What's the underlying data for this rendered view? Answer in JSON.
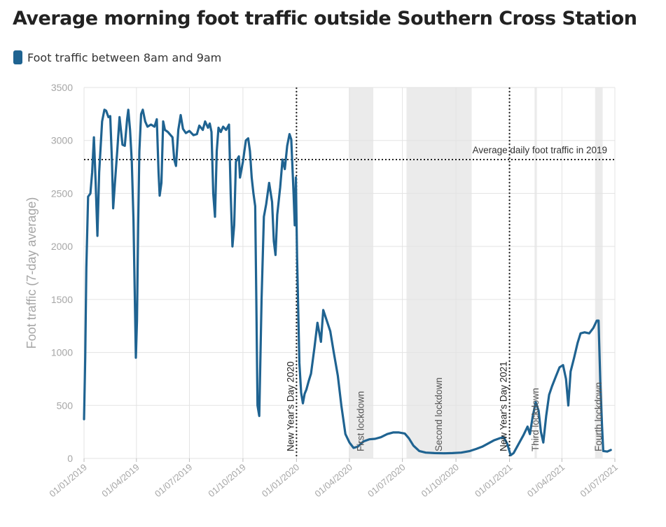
{
  "chart_data": {
    "type": "line",
    "title": "Average morning foot traffic outside Southern Cross Station",
    "legend_position": "top-left",
    "series": [
      {
        "name": "Foot traffic between 8am and 9am",
        "color": "#1f6391",
        "points": [
          [
            "2019-01-01",
            370
          ],
          [
            "2019-01-03",
            950
          ],
          [
            "2019-01-05",
            1800
          ],
          [
            "2019-01-08",
            2470
          ],
          [
            "2019-01-12",
            2500
          ],
          [
            "2019-01-15",
            2700
          ],
          [
            "2019-01-18",
            3030
          ],
          [
            "2019-01-21",
            2600
          ],
          [
            "2019-01-24",
            2100
          ],
          [
            "2019-01-27",
            2700
          ],
          [
            "2019-02-01",
            3180
          ],
          [
            "2019-02-05",
            3290
          ],
          [
            "2019-02-08",
            3280
          ],
          [
            "2019-02-12",
            3220
          ],
          [
            "2019-02-15",
            3230
          ],
          [
            "2019-02-18",
            2800
          ],
          [
            "2019-02-20",
            2360
          ],
          [
            "2019-02-23",
            2600
          ],
          [
            "2019-02-27",
            2900
          ],
          [
            "2019-03-03",
            3220
          ],
          [
            "2019-03-08",
            2960
          ],
          [
            "2019-03-12",
            2950
          ],
          [
            "2019-03-16",
            3200
          ],
          [
            "2019-03-18",
            3290
          ],
          [
            "2019-03-21",
            3100
          ],
          [
            "2019-03-24",
            2800
          ],
          [
            "2019-03-27",
            2250
          ],
          [
            "2019-03-29",
            1600
          ],
          [
            "2019-03-31",
            950
          ],
          [
            "2019-04-02",
            1300
          ],
          [
            "2019-04-04",
            2200
          ],
          [
            "2019-04-06",
            2900
          ],
          [
            "2019-04-09",
            3250
          ],
          [
            "2019-04-12",
            3290
          ],
          [
            "2019-04-16",
            3180
          ],
          [
            "2019-04-20",
            3130
          ],
          [
            "2019-04-26",
            3150
          ],
          [
            "2019-05-02",
            3130
          ],
          [
            "2019-05-06",
            3200
          ],
          [
            "2019-05-09",
            2700
          ],
          [
            "2019-05-11",
            2480
          ],
          [
            "2019-05-14",
            2600
          ],
          [
            "2019-05-17",
            3180
          ],
          [
            "2019-05-20",
            3100
          ],
          [
            "2019-05-25",
            3080
          ],
          [
            "2019-06-02",
            3030
          ],
          [
            "2019-06-05",
            2820
          ],
          [
            "2019-06-08",
            2760
          ],
          [
            "2019-06-12",
            3100
          ],
          [
            "2019-06-16",
            3240
          ],
          [
            "2019-06-20",
            3110
          ],
          [
            "2019-06-25",
            3070
          ],
          [
            "2019-07-01",
            3090
          ],
          [
            "2019-07-08",
            3050
          ],
          [
            "2019-07-14",
            3060
          ],
          [
            "2019-07-18",
            3140
          ],
          [
            "2019-07-24",
            3100
          ],
          [
            "2019-07-28",
            3180
          ],
          [
            "2019-08-02",
            3120
          ],
          [
            "2019-08-05",
            3160
          ],
          [
            "2019-08-08",
            3080
          ],
          [
            "2019-08-11",
            2500
          ],
          [
            "2019-08-14",
            2280
          ],
          [
            "2019-08-17",
            2900
          ],
          [
            "2019-08-20",
            3120
          ],
          [
            "2019-08-24",
            3080
          ],
          [
            "2019-08-28",
            3130
          ],
          [
            "2019-09-02",
            3100
          ],
          [
            "2019-09-07",
            3150
          ],
          [
            "2019-09-10",
            2500
          ],
          [
            "2019-09-13",
            2000
          ],
          [
            "2019-09-16",
            2200
          ],
          [
            "2019-09-19",
            2800
          ],
          [
            "2019-09-24",
            2850
          ],
          [
            "2019-09-26",
            2650
          ],
          [
            "2019-10-01",
            2800
          ],
          [
            "2019-10-06",
            3000
          ],
          [
            "2019-10-10",
            3020
          ],
          [
            "2019-10-13",
            2900
          ],
          [
            "2019-10-16",
            2650
          ],
          [
            "2019-10-19",
            2500
          ],
          [
            "2019-10-22",
            2380
          ],
          [
            "2019-10-24",
            1500
          ],
          [
            "2019-10-26",
            500
          ],
          [
            "2019-10-29",
            400
          ],
          [
            "2019-11-02",
            1500
          ],
          [
            "2019-11-06",
            2280
          ],
          [
            "2019-11-10",
            2400
          ],
          [
            "2019-11-15",
            2600
          ],
          [
            "2019-11-20",
            2420
          ],
          [
            "2019-11-23",
            2050
          ],
          [
            "2019-11-26",
            1920
          ],
          [
            "2019-11-29",
            2300
          ],
          [
            "2019-12-04",
            2560
          ],
          [
            "2019-12-08",
            2820
          ],
          [
            "2019-12-12",
            2730
          ],
          [
            "2019-12-16",
            2950
          ],
          [
            "2019-12-20",
            3060
          ],
          [
            "2019-12-23",
            3010
          ],
          [
            "2019-12-27",
            2500
          ],
          [
            "2019-12-29",
            2200
          ],
          [
            "2019-12-31",
            2650
          ],
          [
            "2020-01-02",
            1900
          ],
          [
            "2020-01-06",
            900
          ],
          [
            "2020-01-09",
            620
          ],
          [
            "2020-01-12",
            520
          ],
          [
            "2020-01-15",
            610
          ],
          [
            "2020-01-18",
            650
          ],
          [
            "2020-01-22",
            730
          ],
          [
            "2020-01-26",
            800
          ],
          [
            "2020-02-01",
            1050
          ],
          [
            "2020-02-06",
            1280
          ],
          [
            "2020-02-12",
            1100
          ],
          [
            "2020-02-16",
            1400
          ],
          [
            "2020-02-22",
            1300
          ],
          [
            "2020-02-28",
            1200
          ],
          [
            "2020-03-05",
            1000
          ],
          [
            "2020-03-12",
            780
          ],
          [
            "2020-03-18",
            500
          ],
          [
            "2020-03-25",
            230
          ],
          [
            "2020-04-01",
            150
          ],
          [
            "2020-04-08",
            100
          ],
          [
            "2020-04-15",
            110
          ],
          [
            "2020-04-25",
            160
          ],
          [
            "2020-05-05",
            180
          ],
          [
            "2020-05-15",
            185
          ],
          [
            "2020-05-25",
            200
          ],
          [
            "2020-06-05",
            230
          ],
          [
            "2020-06-15",
            245
          ],
          [
            "2020-06-25",
            245
          ],
          [
            "2020-07-05",
            235
          ],
          [
            "2020-07-12",
            190
          ],
          [
            "2020-07-20",
            120
          ],
          [
            "2020-07-30",
            70
          ],
          [
            "2020-08-10",
            55
          ],
          [
            "2020-08-25",
            50
          ],
          [
            "2020-09-10",
            48
          ],
          [
            "2020-09-25",
            50
          ],
          [
            "2020-10-10",
            55
          ],
          [
            "2020-10-25",
            70
          ],
          [
            "2020-11-05",
            90
          ],
          [
            "2020-11-15",
            110
          ],
          [
            "2020-11-25",
            140
          ],
          [
            "2020-12-05",
            170
          ],
          [
            "2020-12-15",
            190
          ],
          [
            "2020-12-22",
            200
          ],
          [
            "2020-12-28",
            140
          ],
          [
            "2021-01-03",
            30
          ],
          [
            "2021-01-08",
            50
          ],
          [
            "2021-01-15",
            120
          ],
          [
            "2021-01-25",
            220
          ],
          [
            "2021-02-01",
            300
          ],
          [
            "2021-02-05",
            230
          ],
          [
            "2021-02-10",
            400
          ],
          [
            "2021-02-15",
            530
          ],
          [
            "2021-02-20",
            450
          ],
          [
            "2021-02-24",
            250
          ],
          [
            "2021-02-28",
            150
          ],
          [
            "2021-03-05",
            400
          ],
          [
            "2021-03-10",
            600
          ],
          [
            "2021-03-15",
            680
          ],
          [
            "2021-03-22",
            780
          ],
          [
            "2021-03-28",
            860
          ],
          [
            "2021-04-03",
            880
          ],
          [
            "2021-04-08",
            750
          ],
          [
            "2021-04-12",
            500
          ],
          [
            "2021-04-16",
            820
          ],
          [
            "2021-04-22",
            950
          ],
          [
            "2021-04-28",
            1090
          ],
          [
            "2021-05-03",
            1180
          ],
          [
            "2021-05-10",
            1190
          ],
          [
            "2021-05-18",
            1180
          ],
          [
            "2021-05-25",
            1230
          ],
          [
            "2021-05-31",
            1300
          ],
          [
            "2021-06-03",
            1300
          ],
          [
            "2021-06-06",
            720
          ],
          [
            "2021-06-09",
            300
          ],
          [
            "2021-06-11",
            70
          ],
          [
            "2021-06-18",
            65
          ],
          [
            "2021-06-24",
            80
          ]
        ]
      }
    ],
    "y_axis": {
      "label": "Foot traffic (7-day average)",
      "ylim": [
        0,
        3500
      ],
      "ticks": [
        0,
        500,
        1000,
        1500,
        2000,
        2500,
        3000,
        3500
      ],
      "tick_labels": [
        "0",
        "500",
        "1000",
        "1500",
        "2000",
        "2500",
        "3000",
        "3500"
      ],
      "grid": true
    },
    "x_axis": {
      "label": "",
      "xlim": [
        "2019-01-01",
        "2021-07-01"
      ],
      "ticks": [
        "2019-01-01",
        "2019-04-01",
        "2019-07-01",
        "2019-10-01",
        "2020-01-01",
        "2020-04-01",
        "2020-07-01",
        "2020-10-01",
        "2021-01-01",
        "2021-04-01",
        "2021-07-01"
      ],
      "tick_labels": [
        "01/01/2019",
        "01/04/2019",
        "01/07/2019",
        "01/10/2019",
        "01/01/2020",
        "01/04/2020",
        "01/07/2020",
        "01/10/2020",
        "01/01/2021",
        "01/04/2021",
        "01/07/2021"
      ],
      "grid": true
    },
    "reference_line": {
      "label": "Average daily foot traffic in 2019",
      "y": 2820,
      "style": "dotted"
    },
    "event_lines": [
      {
        "label": "New Year's Day 2020",
        "date": "2020-01-01"
      },
      {
        "label": "New Year's Day 2021",
        "date": "2021-01-01"
      }
    ],
    "shaded_periods": [
      {
        "label": "First lockdown",
        "start": "2020-03-31",
        "end": "2020-05-12"
      },
      {
        "label": "Second lockdown",
        "start": "2020-07-08",
        "end": "2020-10-28"
      },
      {
        "label": "Third lockdown",
        "start": "2021-02-13",
        "end": "2021-02-17"
      },
      {
        "label": "Fourth lockdown",
        "start": "2021-05-28",
        "end": "2021-06-10"
      }
    ],
    "colors": {
      "series": "#1f6391",
      "shade": "#ebebeb",
      "grid": "#e3e3e3",
      "axis_text": "#a6a6a6",
      "annotation_text": "#333333"
    }
  }
}
